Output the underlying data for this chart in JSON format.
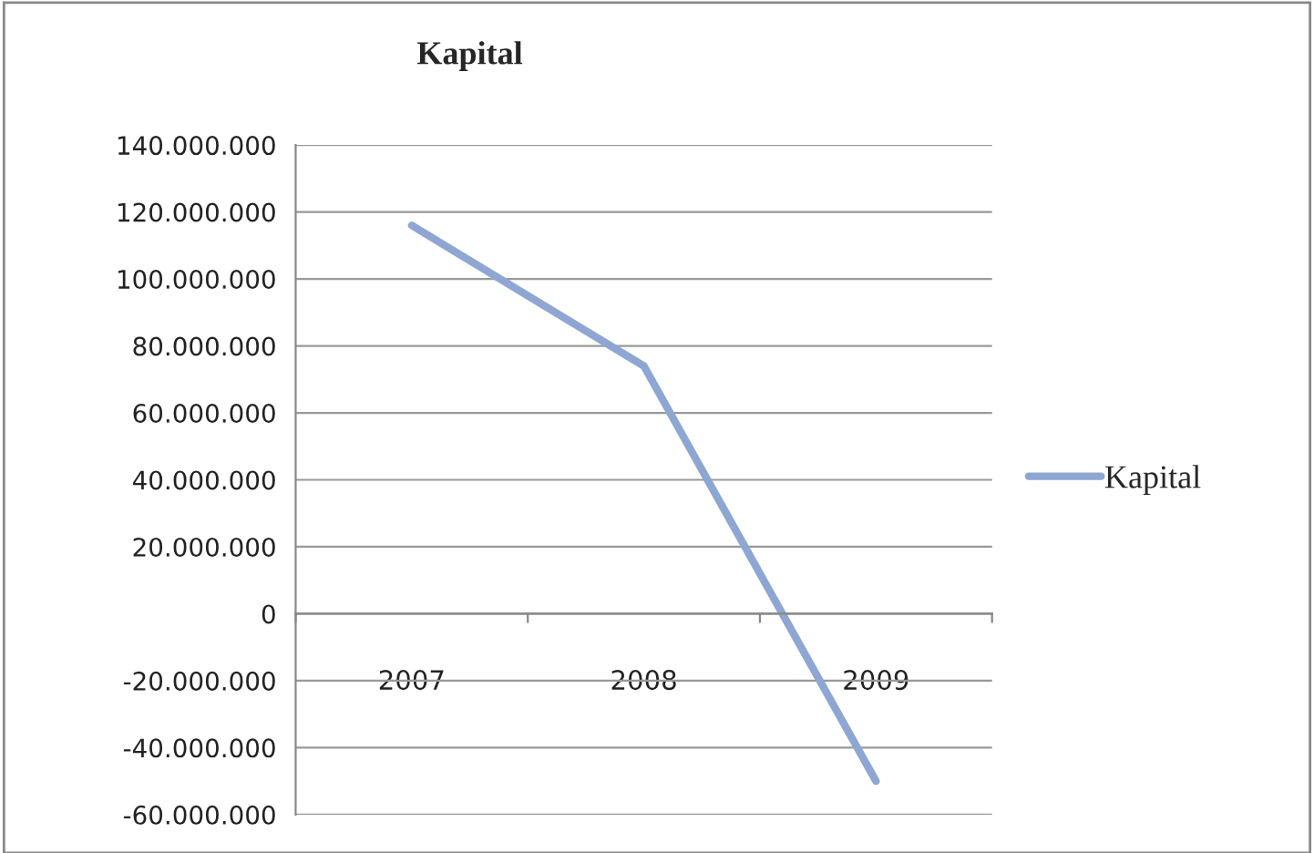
{
  "chart_data": {
    "type": "line",
    "title": "Kapital",
    "categories": [
      "2007",
      "2008",
      "2009"
    ],
    "series": [
      {
        "name": "Kapital",
        "color": "#8ea6d2",
        "values": [
          116000000,
          74000000,
          -50000000
        ]
      }
    ],
    "ylim": [
      -60000000,
      140000000
    ],
    "yticks": [
      {
        "value": -60000000,
        "label": "-60.000.000"
      },
      {
        "value": -40000000,
        "label": "-40.000.000"
      },
      {
        "value": -20000000,
        "label": "-20.000.000"
      },
      {
        "value": 0,
        "label": "0"
      },
      {
        "value": 20000000,
        "label": "20.000.000"
      },
      {
        "value": 40000000,
        "label": "40.000.000"
      },
      {
        "value": 60000000,
        "label": "60.000.000"
      },
      {
        "value": 80000000,
        "label": "80.000.000"
      },
      {
        "value": 100000000,
        "label": "100.000.000"
      },
      {
        "value": 120000000,
        "label": "120.000.000"
      },
      {
        "value": 140000000,
        "label": "140.000.000"
      }
    ],
    "grid": "y",
    "legend": "right",
    "marker": "none",
    "line_style": "solid"
  }
}
